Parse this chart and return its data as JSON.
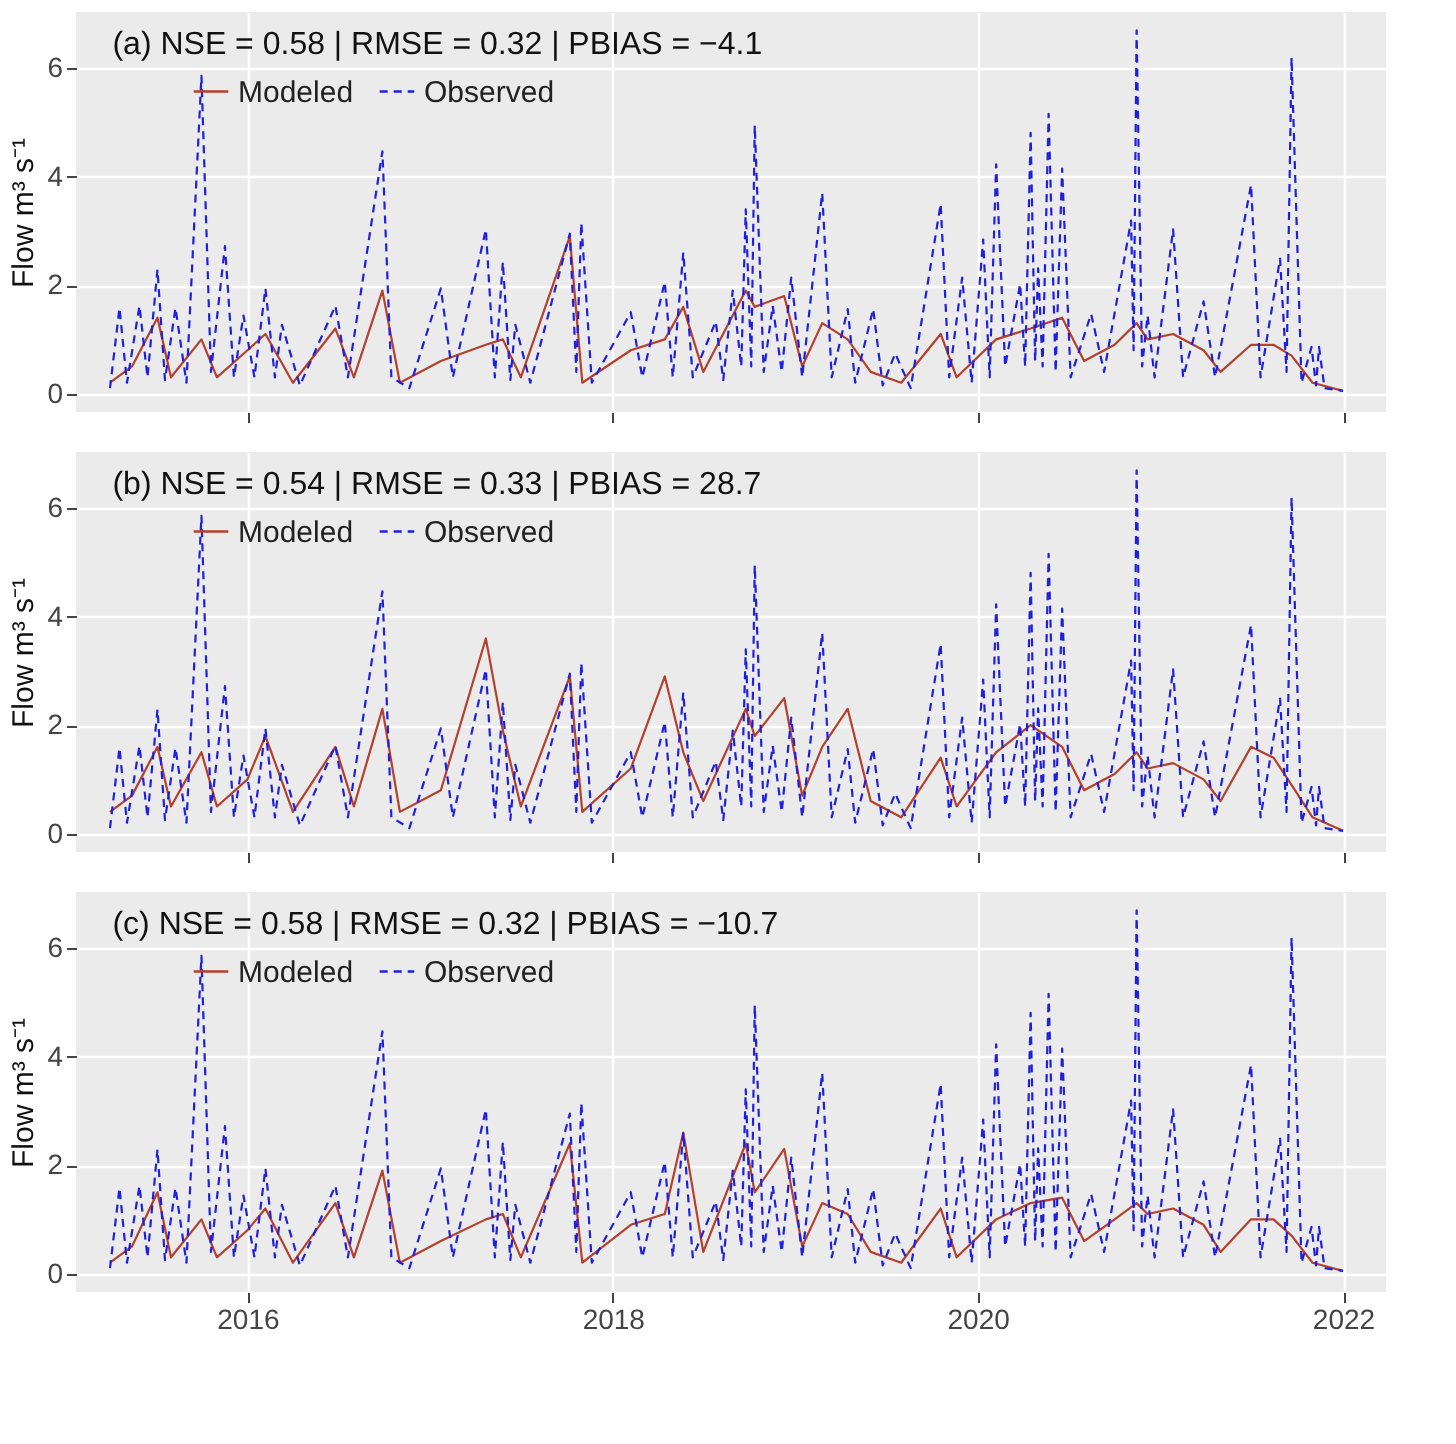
{
  "chart_data": [
    {
      "type": "line",
      "title": "(a)  NSE = 0.58 | RMSE = 0.32 | PBIAS = −4.1",
      "ylabel": "Flow m³ s⁻¹",
      "xlim": [
        "2015-01-23",
        "2022-03-28"
      ],
      "xticks": [
        "2016",
        "2018",
        "2020",
        "2022"
      ],
      "ylim": [
        -0.34,
        7.04
      ],
      "yticks": [
        0,
        2,
        4,
        6
      ],
      "grid": true,
      "legend": "top left",
      "tick_labels": "y",
      "series": [
        {
          "name": "Modeled",
          "color": "#b5402e",
          "line_style": "solid",
          "x": [
            "2015-04-01",
            "2015-05-15",
            "2015-07-05",
            "2015-08-01",
            "2015-10-01",
            "2015-11-01",
            "2016-01-01",
            "2016-02-06",
            "2016-04-01",
            "2016-06-25",
            "2016-08-01",
            "2016-09-27",
            "2016-11-01",
            "2017-01-22",
            "2017-04-22",
            "2017-05-26",
            "2017-07-01",
            "2017-10-07",
            "2017-11-01",
            "2018-02-06",
            "2018-04-15",
            "2018-05-22",
            "2018-07-01",
            "2018-09-24",
            "2018-10-12",
            "2018-12-10",
            "2019-01-15",
            "2019-02-24",
            "2019-04-16",
            "2019-06-01",
            "2019-08-01",
            "2019-10-19",
            "2019-11-20",
            "2020-02-07",
            "2020-04-16",
            "2020-06-18",
            "2020-08-01",
            "2020-10-01",
            "2020-11-14",
            "2020-12-06",
            "2021-01-26",
            "2021-03-28",
            "2021-05-01",
            "2021-07-01",
            "2021-08-15",
            "2021-09-20",
            "2021-11-01",
            "2022-01-01"
          ],
          "values": [
            0.2,
            0.5,
            1.4,
            0.3,
            1.0,
            0.3,
            0.8,
            1.1,
            0.2,
            1.2,
            0.3,
            1.9,
            0.2,
            0.6,
            0.9,
            1.0,
            0.3,
            2.9,
            0.2,
            0.8,
            1.0,
            1.6,
            0.4,
            1.9,
            1.6,
            1.8,
            0.5,
            1.3,
            1.0,
            0.4,
            0.2,
            1.1,
            0.3,
            1.0,
            1.2,
            1.4,
            0.6,
            0.9,
            1.3,
            1.0,
            1.1,
            0.8,
            0.4,
            0.9,
            0.9,
            0.7,
            0.2,
            0.05
          ]
        },
        {
          "name": "Observed",
          "color": "#1f1fe0",
          "line_style": "dashed",
          "x": [
            "2015-04-01",
            "2015-04-20",
            "2015-05-05",
            "2015-05-30",
            "2015-06-15",
            "2015-07-05",
            "2015-07-20",
            "2015-08-10",
            "2015-09-01",
            "2015-10-01",
            "2015-10-20",
            "2015-11-17",
            "2015-12-05",
            "2015-12-24",
            "2016-01-15",
            "2016-02-06",
            "2016-02-25",
            "2016-03-10",
            "2016-04-15",
            "2016-06-25",
            "2016-07-20",
            "2016-09-27",
            "2016-10-15",
            "2016-11-20",
            "2017-01-22",
            "2017-02-15",
            "2017-04-22",
            "2017-05-10",
            "2017-05-26",
            "2017-06-10",
            "2017-06-20",
            "2017-07-20",
            "2017-10-07",
            "2017-10-20",
            "2017-10-30",
            "2017-11-20",
            "2018-02-06",
            "2018-03-01",
            "2018-04-15",
            "2018-05-01",
            "2018-05-22",
            "2018-06-10",
            "2018-07-26",
            "2018-08-10",
            "2018-08-29",
            "2018-09-15",
            "2018-09-24",
            "2018-10-05",
            "2018-10-12",
            "2018-10-30",
            "2018-11-17",
            "2018-12-05",
            "2018-12-24",
            "2019-01-15",
            "2019-02-24",
            "2019-03-15",
            "2019-04-16",
            "2019-05-01",
            "2019-06-06",
            "2019-06-25",
            "2019-07-20",
            "2019-08-20",
            "2019-10-19",
            "2019-11-05",
            "2019-12-01",
            "2019-12-20",
            "2020-01-12",
            "2020-01-25",
            "2020-02-07",
            "2020-02-25",
            "2020-03-26",
            "2020-04-05",
            "2020-04-16",
            "2020-04-25",
            "2020-05-01",
            "2020-05-10",
            "2020-05-22",
            "2020-06-05",
            "2020-06-18",
            "2020-07-05",
            "2020-08-15",
            "2020-09-10",
            "2020-11-03",
            "2020-11-08",
            "2020-11-14",
            "2020-11-25",
            "2020-12-06",
            "2020-12-20",
            "2021-01-26",
            "2021-02-15",
            "2021-03-28",
            "2021-04-20",
            "2021-07-01",
            "2021-07-20",
            "2021-08-28",
            "2021-09-10",
            "2021-09-20",
            "2021-10-10",
            "2021-10-30",
            "2021-11-08",
            "2021-11-14",
            "2021-11-25",
            "2022-01-01"
          ],
          "values": [
            0.1,
            1.58,
            0.2,
            1.62,
            0.3,
            2.29,
            0.25,
            1.58,
            0.2,
            5.86,
            0.4,
            2.72,
            0.3,
            1.44,
            0.3,
            1.94,
            0.3,
            1.27,
            0.15,
            1.62,
            0.3,
            4.47,
            0.3,
            0.1,
            1.94,
            0.3,
            3.03,
            0.3,
            2.43,
            0.25,
            1.27,
            0.2,
            2.95,
            0.4,
            3.15,
            0.2,
            1.5,
            0.3,
            2.06,
            0.3,
            2.6,
            0.3,
            1.33,
            0.25,
            1.9,
            0.5,
            3.4,
            0.5,
            4.95,
            0.4,
            1.62,
            0.4,
            2.14,
            0.3,
            3.7,
            0.3,
            1.56,
            0.2,
            1.56,
            0.15,
            0.74,
            0.1,
            3.5,
            0.3,
            2.14,
            0.2,
            2.84,
            0.3,
            4.23,
            0.5,
            2.02,
            0.5,
            4.81,
            0.6,
            2.31,
            0.5,
            5.16,
            0.4,
            4.15,
            0.3,
            1.47,
            0.4,
            3.19,
            0.8,
            6.7,
            0.5,
            1.44,
            0.3,
            3.03,
            0.3,
            1.7,
            0.3,
            3.85,
            0.3,
            2.49,
            0.4,
            6.2,
            0.2,
            0.86,
            0.15,
            0.86,
            0.1,
            0.05
          ]
        }
      ]
    },
    {
      "type": "line",
      "title": "(b)  NSE = 0.54 | RMSE = 0.33 | PBIAS = 28.7",
      "ylabel": "Flow m³ s⁻¹",
      "xlim": [
        "2015-01-23",
        "2022-03-28"
      ],
      "xticks": [
        "2016",
        "2018",
        "2020",
        "2022"
      ],
      "ylim": [
        -0.34,
        7.04
      ],
      "yticks": [
        0,
        2,
        4,
        6
      ],
      "grid": true,
      "legend": "top left",
      "tick_labels": "y",
      "series": [
        {
          "name": "Modeled",
          "color": "#b5402e",
          "line_style": "solid",
          "x": [
            "2015-04-01",
            "2015-05-15",
            "2015-07-05",
            "2015-08-01",
            "2015-10-01",
            "2015-11-01",
            "2016-01-01",
            "2016-02-06",
            "2016-04-01",
            "2016-06-25",
            "2016-08-01",
            "2016-09-27",
            "2016-11-01",
            "2017-01-22",
            "2017-04-22",
            "2017-05-26",
            "2017-07-01",
            "2017-10-07",
            "2017-11-01",
            "2018-02-06",
            "2018-04-15",
            "2018-05-22",
            "2018-07-01",
            "2018-09-24",
            "2018-10-12",
            "2018-12-10",
            "2019-01-15",
            "2019-02-24",
            "2019-04-16",
            "2019-06-01",
            "2019-08-01",
            "2019-10-19",
            "2019-11-20",
            "2020-02-07",
            "2020-04-16",
            "2020-06-18",
            "2020-08-01",
            "2020-10-01",
            "2020-11-14",
            "2020-12-06",
            "2021-01-26",
            "2021-03-28",
            "2021-05-01",
            "2021-07-01",
            "2021-08-15",
            "2021-09-20",
            "2021-11-01",
            "2022-01-01"
          ],
          "values": [
            0.4,
            0.7,
            1.6,
            0.5,
            1.5,
            0.5,
            1.0,
            1.8,
            0.4,
            1.6,
            0.5,
            2.3,
            0.4,
            0.8,
            3.6,
            1.9,
            0.5,
            2.9,
            0.4,
            1.2,
            2.9,
            1.5,
            0.6,
            2.3,
            1.8,
            2.5,
            0.7,
            1.6,
            2.3,
            0.6,
            0.3,
            1.4,
            0.5,
            1.5,
            2.0,
            1.6,
            0.8,
            1.1,
            1.5,
            1.2,
            1.3,
            1.0,
            0.6,
            1.6,
            1.4,
            0.9,
            0.3,
            0.05
          ]
        },
        {
          "name": "Observed",
          "color": "#1f1fe0",
          "line_style": "dashed",
          "x": [
            "2015-04-01",
            "2015-04-20",
            "2015-05-05",
            "2015-05-30",
            "2015-06-15",
            "2015-07-05",
            "2015-07-20",
            "2015-08-10",
            "2015-09-01",
            "2015-10-01",
            "2015-10-20",
            "2015-11-17",
            "2015-12-05",
            "2015-12-24",
            "2016-01-15",
            "2016-02-06",
            "2016-02-25",
            "2016-03-10",
            "2016-04-15",
            "2016-06-25",
            "2016-07-20",
            "2016-09-27",
            "2016-10-15",
            "2016-11-20",
            "2017-01-22",
            "2017-02-15",
            "2017-04-22",
            "2017-05-10",
            "2017-05-26",
            "2017-06-10",
            "2017-06-20",
            "2017-07-20",
            "2017-10-07",
            "2017-10-20",
            "2017-10-30",
            "2017-11-20",
            "2018-02-06",
            "2018-03-01",
            "2018-04-15",
            "2018-05-01",
            "2018-05-22",
            "2018-06-10",
            "2018-07-26",
            "2018-08-10",
            "2018-08-29",
            "2018-09-15",
            "2018-09-24",
            "2018-10-05",
            "2018-10-12",
            "2018-10-30",
            "2018-11-17",
            "2018-12-05",
            "2018-12-24",
            "2019-01-15",
            "2019-02-24",
            "2019-03-15",
            "2019-04-16",
            "2019-05-01",
            "2019-06-06",
            "2019-06-25",
            "2019-07-20",
            "2019-08-20",
            "2019-10-19",
            "2019-11-05",
            "2019-12-01",
            "2019-12-20",
            "2020-01-12",
            "2020-01-25",
            "2020-02-07",
            "2020-02-25",
            "2020-03-26",
            "2020-04-05",
            "2020-04-16",
            "2020-04-25",
            "2020-05-01",
            "2020-05-10",
            "2020-05-22",
            "2020-06-05",
            "2020-06-18",
            "2020-07-05",
            "2020-08-15",
            "2020-09-10",
            "2020-11-03",
            "2020-11-08",
            "2020-11-14",
            "2020-11-25",
            "2020-12-06",
            "2020-12-20",
            "2021-01-26",
            "2021-02-15",
            "2021-03-28",
            "2021-04-20",
            "2021-07-01",
            "2021-07-20",
            "2021-08-28",
            "2021-09-10",
            "2021-09-20",
            "2021-10-10",
            "2021-10-30",
            "2021-11-08",
            "2021-11-14",
            "2021-11-25",
            "2022-01-01"
          ],
          "values": [
            0.1,
            1.58,
            0.2,
            1.62,
            0.3,
            2.29,
            0.25,
            1.58,
            0.2,
            5.86,
            0.4,
            2.72,
            0.3,
            1.44,
            0.3,
            1.94,
            0.3,
            1.27,
            0.15,
            1.62,
            0.3,
            4.47,
            0.3,
            0.1,
            1.94,
            0.3,
            3.03,
            0.3,
            2.43,
            0.25,
            1.27,
            0.2,
            2.95,
            0.4,
            3.15,
            0.2,
            1.5,
            0.3,
            2.06,
            0.3,
            2.6,
            0.3,
            1.33,
            0.25,
            1.9,
            0.5,
            3.4,
            0.5,
            4.95,
            0.4,
            1.62,
            0.4,
            2.14,
            0.3,
            3.7,
            0.3,
            1.56,
            0.2,
            1.56,
            0.15,
            0.74,
            0.1,
            3.5,
            0.3,
            2.14,
            0.2,
            2.84,
            0.3,
            4.23,
            0.5,
            2.02,
            0.5,
            4.81,
            0.6,
            2.31,
            0.5,
            5.16,
            0.4,
            4.15,
            0.3,
            1.47,
            0.4,
            3.19,
            0.8,
            6.7,
            0.5,
            1.44,
            0.3,
            3.03,
            0.3,
            1.7,
            0.3,
            3.85,
            0.3,
            2.49,
            0.4,
            6.2,
            0.2,
            0.86,
            0.15,
            0.86,
            0.1,
            0.05
          ]
        }
      ]
    },
    {
      "type": "line",
      "title": "(c)  NSE = 0.58 | RMSE = 0.32 | PBIAS = −10.7",
      "ylabel": "Flow m³ s⁻¹",
      "xlim": [
        "2015-01-23",
        "2022-03-28"
      ],
      "xticks": [
        "2016",
        "2018",
        "2020",
        "2022"
      ],
      "ylim": [
        -0.34,
        7.04
      ],
      "yticks": [
        0,
        2,
        4,
        6
      ],
      "grid": true,
      "legend": "top left",
      "series": [
        {
          "name": "Modeled",
          "color": "#b5402e",
          "line_style": "solid",
          "x": [
            "2015-04-01",
            "2015-05-15",
            "2015-07-05",
            "2015-08-01",
            "2015-10-01",
            "2015-11-01",
            "2016-01-01",
            "2016-02-06",
            "2016-04-01",
            "2016-06-25",
            "2016-08-01",
            "2016-09-27",
            "2016-11-01",
            "2017-01-22",
            "2017-04-22",
            "2017-05-26",
            "2017-07-01",
            "2017-10-07",
            "2017-11-01",
            "2018-02-06",
            "2018-04-15",
            "2018-05-22",
            "2018-07-01",
            "2018-09-24",
            "2018-10-12",
            "2018-12-10",
            "2019-01-15",
            "2019-02-24",
            "2019-04-16",
            "2019-06-01",
            "2019-08-01",
            "2019-10-19",
            "2019-11-20",
            "2020-02-07",
            "2020-04-16",
            "2020-06-18",
            "2020-08-01",
            "2020-10-01",
            "2020-11-14",
            "2020-12-06",
            "2021-01-26",
            "2021-03-28",
            "2021-05-01",
            "2021-07-01",
            "2021-08-15",
            "2021-09-20",
            "2021-11-01",
            "2022-01-01"
          ],
          "values": [
            0.2,
            0.5,
            1.5,
            0.3,
            1.0,
            0.3,
            0.8,
            1.2,
            0.2,
            1.3,
            0.3,
            1.9,
            0.2,
            0.6,
            1.0,
            1.1,
            0.3,
            2.4,
            0.2,
            0.9,
            1.1,
            2.6,
            0.4,
            2.4,
            1.5,
            2.3,
            0.5,
            1.3,
            1.1,
            0.4,
            0.2,
            1.2,
            0.3,
            1.0,
            1.3,
            1.4,
            0.6,
            1.0,
            1.3,
            1.1,
            1.2,
            0.9,
            0.4,
            1.0,
            1.0,
            0.7,
            0.2,
            0.05
          ]
        },
        {
          "name": "Observed",
          "color": "#1f1fe0",
          "line_style": "dashed",
          "x": [
            "2015-04-01",
            "2015-04-20",
            "2015-05-05",
            "2015-05-30",
            "2015-06-15",
            "2015-07-05",
            "2015-07-20",
            "2015-08-10",
            "2015-09-01",
            "2015-10-01",
            "2015-10-20",
            "2015-11-17",
            "2015-12-05",
            "2015-12-24",
            "2016-01-15",
            "2016-02-06",
            "2016-02-25",
            "2016-03-10",
            "2016-04-15",
            "2016-06-25",
            "2016-07-20",
            "2016-09-27",
            "2016-10-15",
            "2016-11-20",
            "2017-01-22",
            "2017-02-15",
            "2017-04-22",
            "2017-05-10",
            "2017-05-26",
            "2017-06-10",
            "2017-06-20",
            "2017-07-20",
            "2017-10-07",
            "2017-10-20",
            "2017-10-30",
            "2017-11-20",
            "2018-02-06",
            "2018-03-01",
            "2018-04-15",
            "2018-05-01",
            "2018-05-22",
            "2018-06-10",
            "2018-07-26",
            "2018-08-10",
            "2018-08-29",
            "2018-09-15",
            "2018-09-24",
            "2018-10-05",
            "2018-10-12",
            "2018-10-30",
            "2018-11-17",
            "2018-12-05",
            "2018-12-24",
            "2019-01-15",
            "2019-02-24",
            "2019-03-15",
            "2019-04-16",
            "2019-05-01",
            "2019-06-06",
            "2019-06-25",
            "2019-07-20",
            "2019-08-20",
            "2019-10-19",
            "2019-11-05",
            "2019-12-01",
            "2019-12-20",
            "2020-01-12",
            "2020-01-25",
            "2020-02-07",
            "2020-02-25",
            "2020-03-26",
            "2020-04-05",
            "2020-04-16",
            "2020-04-25",
            "2020-05-01",
            "2020-05-10",
            "2020-05-22",
            "2020-06-05",
            "2020-06-18",
            "2020-07-05",
            "2020-08-15",
            "2020-09-10",
            "2020-11-03",
            "2020-11-08",
            "2020-11-14",
            "2020-11-25",
            "2020-12-06",
            "2020-12-20",
            "2021-01-26",
            "2021-02-15",
            "2021-03-28",
            "2021-04-20",
            "2021-07-01",
            "2021-07-20",
            "2021-08-28",
            "2021-09-10",
            "2021-09-20",
            "2021-10-10",
            "2021-10-30",
            "2021-11-08",
            "2021-11-14",
            "2021-11-25",
            "2022-01-01"
          ],
          "values": [
            0.1,
            1.58,
            0.2,
            1.62,
            0.3,
            2.29,
            0.25,
            1.58,
            0.2,
            5.86,
            0.4,
            2.72,
            0.3,
            1.44,
            0.3,
            1.94,
            0.3,
            1.27,
            0.15,
            1.62,
            0.3,
            4.47,
            0.3,
            0.1,
            1.94,
            0.3,
            3.03,
            0.3,
            2.43,
            0.25,
            1.27,
            0.2,
            2.95,
            0.4,
            3.15,
            0.2,
            1.5,
            0.3,
            2.06,
            0.3,
            2.6,
            0.3,
            1.33,
            0.25,
            1.9,
            0.5,
            3.4,
            0.5,
            4.95,
            0.4,
            1.62,
            0.4,
            2.14,
            0.3,
            3.7,
            0.3,
            1.56,
            0.2,
            1.56,
            0.15,
            0.74,
            0.1,
            3.5,
            0.3,
            2.14,
            0.2,
            2.84,
            0.3,
            4.23,
            0.5,
            2.02,
            0.5,
            4.81,
            0.6,
            2.31,
            0.5,
            5.16,
            0.4,
            4.15,
            0.3,
            1.47,
            0.4,
            3.19,
            0.8,
            6.7,
            0.5,
            1.44,
            0.3,
            3.03,
            0.3,
            1.7,
            0.3,
            3.85,
            0.3,
            2.49,
            0.4,
            6.2,
            0.2,
            0.86,
            0.15,
            0.86,
            0.1,
            0.05
          ]
        }
      ]
    }
  ]
}
